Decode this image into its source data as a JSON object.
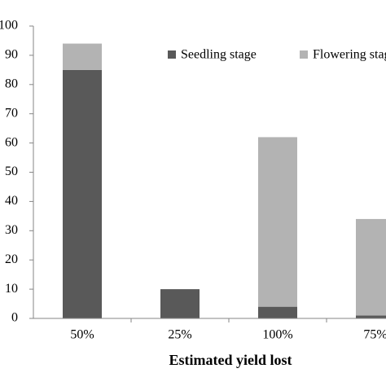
{
  "chart_data": {
    "type": "stacked_bar",
    "x_label": "Estimated yield lost",
    "categories": [
      "50%",
      "25%",
      "100%",
      "75%"
    ],
    "series": [
      {
        "name": "Seedling stage",
        "color": "#595959",
        "values": [
          85,
          10,
          4,
          1
        ]
      },
      {
        "name": "Flowering stage",
        "color": "#b3b3b3",
        "values": [
          9,
          0,
          58,
          33
        ]
      }
    ],
    "ylim": [
      0,
      100
    ],
    "yticks": [
      0,
      10,
      20,
      30,
      40,
      50,
      60,
      70,
      80,
      90,
      100
    ],
    "legend": "top-right"
  }
}
